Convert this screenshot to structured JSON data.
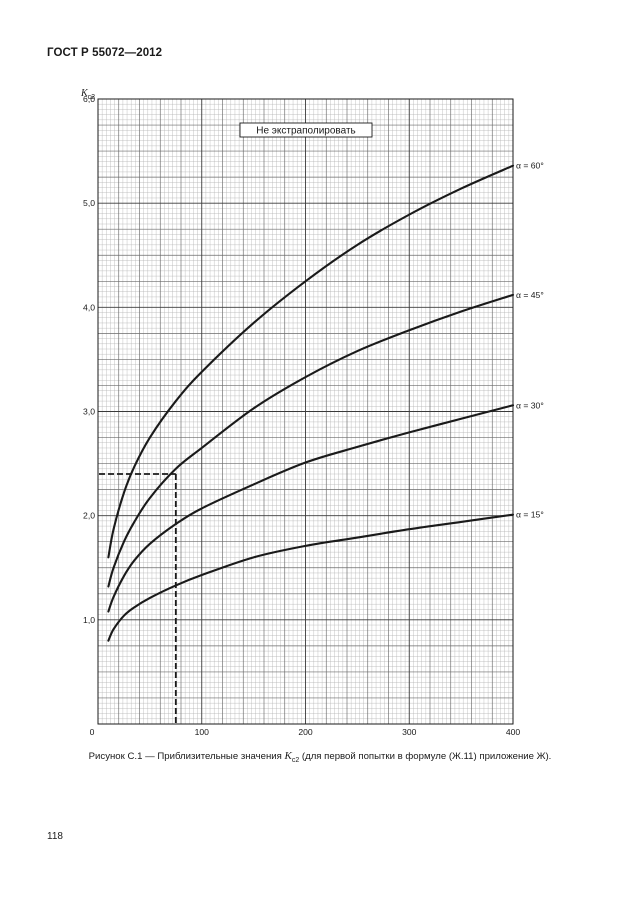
{
  "header": {
    "standard": "ГОСТ Р 55072—2012"
  },
  "caption": {
    "prefix": "Рисунок С.1 — Приблизительные значения ",
    "symbol": "K",
    "symbol_sub": "c2",
    "suffix": " (для первой попытки в формуле (Ж.11) приложение Ж)."
  },
  "page_number": "118",
  "chart_data": {
    "type": "line",
    "title": "",
    "xlabel": "",
    "ylabel_symbol": "K",
    "ylabel_sub": "c2",
    "xlim": [
      0,
      400
    ],
    "ylim": [
      0,
      6
    ],
    "x_ticks": [
      {
        "value": 0,
        "label": "0"
      },
      {
        "value": 100,
        "label": "100"
      },
      {
        "value": 200,
        "label": "200"
      },
      {
        "value": 300,
        "label": "300"
      },
      {
        "value": 400,
        "label": "400"
      }
    ],
    "y_ticks": [
      {
        "value": 1,
        "label": "1,0"
      },
      {
        "value": 2,
        "label": "2,0"
      },
      {
        "value": 3,
        "label": "3,0"
      },
      {
        "value": 4,
        "label": "4,0"
      },
      {
        "value": 5,
        "label": "5,0"
      },
      {
        "value": 6,
        "label": "6,0"
      }
    ],
    "grid": true,
    "annotation": "Не экстраполировать",
    "series": [
      {
        "name": "α = 60°",
        "x": [
          10,
          15,
          25,
          35,
          50,
          75,
          100,
          150,
          200,
          250,
          300,
          350,
          400
        ],
        "y": [
          1.6,
          1.87,
          2.22,
          2.47,
          2.75,
          3.1,
          3.38,
          3.85,
          4.25,
          4.6,
          4.89,
          5.14,
          5.36
        ]
      },
      {
        "name": "α = 45°",
        "x": [
          10,
          15,
          25,
          35,
          50,
          75,
          100,
          150,
          200,
          250,
          300,
          350,
          400
        ],
        "y": [
          1.32,
          1.5,
          1.75,
          1.94,
          2.17,
          2.45,
          2.65,
          3.03,
          3.33,
          3.58,
          3.78,
          3.96,
          4.12
        ]
      },
      {
        "name": "α = 30°",
        "x": [
          10,
          15,
          25,
          35,
          50,
          75,
          100,
          150,
          200,
          250,
          300,
          350,
          400
        ],
        "y": [
          1.08,
          1.22,
          1.42,
          1.57,
          1.73,
          1.92,
          2.07,
          2.3,
          2.51,
          2.66,
          2.8,
          2.93,
          3.06
        ]
      },
      {
        "name": "α = 15°",
        "x": [
          10,
          15,
          25,
          35,
          50,
          75,
          100,
          150,
          200,
          250,
          300,
          350,
          400
        ],
        "y": [
          0.8,
          0.91,
          1.04,
          1.12,
          1.21,
          1.33,
          1.43,
          1.6,
          1.71,
          1.79,
          1.87,
          1.94,
          2.01
        ]
      }
    ],
    "guide_line": {
      "x": 75,
      "y": 2.4,
      "style": "dashed"
    }
  }
}
